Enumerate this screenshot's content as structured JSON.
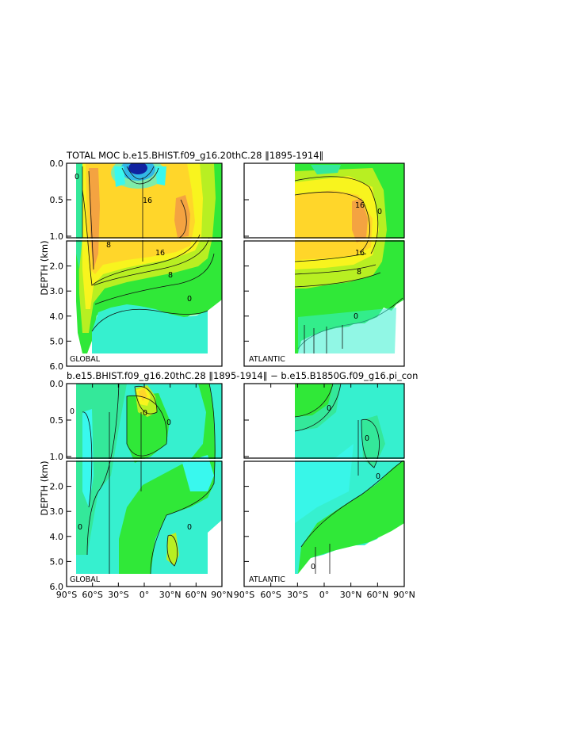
{
  "figure": {
    "top_title": "TOTAL MOC b.e15.BHIST.f09_g16.20thC.28 ‖1895-1914‖",
    "bottom_title": "b.e15.BHIST.f09_g16.20thC.28 ‖1895-1914‖ − b.e15.B1850G.f09_g16.pi_con"
  },
  "chart_data": {
    "type": "heatmap",
    "ylabel": "DEPTH (km)",
    "xlim": [
      -90,
      90
    ],
    "ylim": [
      6.0,
      0.0
    ],
    "upper_axis_ticks": [
      "0.0",
      "0.5",
      "1.0"
    ],
    "lower_axis_ticks": [
      "2.0",
      "3.0",
      "4.0",
      "5.0",
      "6.0"
    ],
    "x_ticks_global": [
      "90°S",
      "60°S",
      "30°S",
      "0°",
      "30°N",
      "60°N",
      "90°N"
    ],
    "x_ticks_atlantic": [
      "90°S",
      "60°S",
      "30°S",
      "0°",
      "30°N",
      "60°N",
      "90°N"
    ],
    "panels": [
      {
        "row": "top",
        "region": "GLOBAL",
        "contour_labels": [
          "0",
          "16",
          "8",
          "16",
          "8",
          "0"
        ]
      },
      {
        "row": "top",
        "region": "ATLANTIC",
        "contour_labels": [
          "16",
          "16",
          "8",
          "0",
          "0"
        ]
      },
      {
        "row": "bottom",
        "region": "GLOBAL",
        "contour_labels": [
          "0",
          "0",
          "0",
          "0",
          "0"
        ]
      },
      {
        "row": "bottom",
        "region": "ATLANTIC",
        "contour_labels": [
          "0",
          "0",
          "0",
          "0"
        ]
      }
    ],
    "colors": {
      "strong_positive": "#f4a341",
      "positive_high": "#ffd62a",
      "positive": "#f8f41e",
      "positive_low": "#b8ef22",
      "zero": "#30e838",
      "weak_negative": "#34e89a",
      "negative": "#36f0cf",
      "negative_more": "#39f8ee",
      "strong_negative": "#2440d8"
    }
  }
}
